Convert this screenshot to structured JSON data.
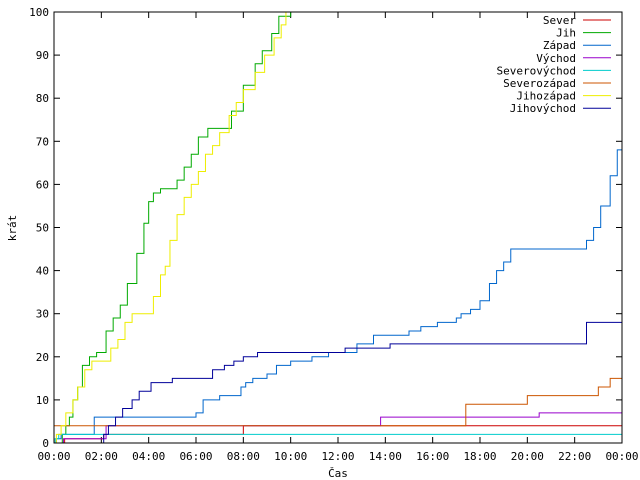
{
  "chart_data": {
    "type": "line",
    "xlabel": "Čas",
    "ylabel": "krát",
    "xlim": [
      0,
      24
    ],
    "ylim": [
      0,
      100
    ],
    "x_ticks": [
      "00:00",
      "02:00",
      "04:00",
      "06:00",
      "08:00",
      "10:00",
      "12:00",
      "14:00",
      "16:00",
      "18:00",
      "20:00",
      "22:00",
      "00:00"
    ],
    "y_ticks": [
      0,
      10,
      20,
      30,
      40,
      50,
      60,
      70,
      80,
      90,
      100
    ],
    "legend_position": "top-right",
    "line_style": "step",
    "series": [
      {
        "name": "Sever",
        "color": "#cc0000",
        "x": [
          0,
          0.4,
          0.45,
          2.0,
          2.1,
          7.95,
          8.0,
          24
        ],
        "y": [
          0,
          0,
          1,
          1,
          2,
          2,
          4,
          4
        ]
      },
      {
        "name": "Jih",
        "color": "#00aa00",
        "x": [
          0,
          0.35,
          0.5,
          0.65,
          0.8,
          1.0,
          1.2,
          1.5,
          1.8,
          2.2,
          2.5,
          2.8,
          3.1,
          3.5,
          3.8,
          4.0,
          4.2,
          4.5,
          5.2,
          5.5,
          5.8,
          6.1,
          6.5,
          7.0,
          7.5,
          8.0,
          8.5,
          8.8,
          9.2,
          9.5,
          10.0
        ],
        "y": [
          0,
          2,
          4,
          6,
          10,
          13,
          18,
          20,
          21,
          26,
          29,
          32,
          37,
          44,
          51,
          56,
          58,
          59,
          61,
          64,
          67,
          71,
          73,
          73,
          77,
          83,
          88,
          91,
          95,
          99,
          100
        ]
      },
      {
        "name": "Západ",
        "color": "#0066cc",
        "x": [
          0,
          0.1,
          0.3,
          1.5,
          1.7,
          5.9,
          6.0,
          6.3,
          7.0,
          7.6,
          7.9,
          8.1,
          8.4,
          9.0,
          9.4,
          10.0,
          10.9,
          11.6,
          12.2,
          12.8,
          13.5,
          14.3,
          15.0,
          15.5,
          16.2,
          17.0,
          17.2,
          17.6,
          18.0,
          18.4,
          18.7,
          19.0,
          19.3,
          22.1,
          22.5,
          22.8,
          23.1,
          23.5,
          23.8,
          24
        ],
        "y": [
          0,
          1,
          2,
          2,
          6,
          6,
          7,
          10,
          11,
          11,
          13,
          14,
          15,
          16,
          18,
          19,
          20,
          21,
          21,
          23,
          25,
          25,
          26,
          27,
          28,
          29,
          30,
          31,
          33,
          37,
          40,
          42,
          45,
          45,
          47,
          50,
          55,
          62,
          68,
          75
        ]
      },
      {
        "name": "Východ",
        "color": "#9900cc",
        "x": [
          0,
          0.2,
          0.4,
          2.1,
          2.2,
          13.6,
          13.8,
          20.4,
          20.5,
          24
        ],
        "y": [
          0,
          0,
          1,
          1,
          4,
          4,
          6,
          6,
          7,
          7
        ]
      },
      {
        "name": "Severovýchod",
        "color": "#00cccc",
        "x": [
          0,
          0.05,
          0.2,
          24
        ],
        "y": [
          0,
          1,
          2,
          2
        ]
      },
      {
        "name": "Severozápad",
        "color": "#cc5500",
        "x": [
          0,
          17.2,
          17.4,
          19.8,
          20.0,
          22.8,
          23.0,
          23.3,
          23.5,
          24
        ],
        "y": [
          4,
          4,
          9,
          9,
          11,
          11,
          13,
          13,
          15,
          15
        ]
      },
      {
        "name": "Jihozápad",
        "color": "#eeee00",
        "x": [
          0,
          0.1,
          0.3,
          0.5,
          0.8,
          1.0,
          1.3,
          1.6,
          2.0,
          2.4,
          2.7,
          3.0,
          3.3,
          3.8,
          4.2,
          4.5,
          4.7,
          4.9,
          5.2,
          5.5,
          5.8,
          6.1,
          6.4,
          6.7,
          7.0,
          7.4,
          7.7,
          8.0,
          8.5,
          8.9,
          9.3,
          9.6,
          9.8
        ],
        "y": [
          0,
          2,
          4,
          7,
          10,
          13,
          17,
          19,
          19,
          22,
          24,
          28,
          30,
          30,
          34,
          39,
          41,
          47,
          53,
          57,
          60,
          63,
          67,
          69,
          72,
          76,
          79,
          82,
          86,
          90,
          94,
          97,
          100
        ]
      },
      {
        "name": "Jihovýchod",
        "color": "#000099",
        "x": [
          0,
          2.0,
          2.1,
          2.3,
          2.6,
          2.9,
          3.3,
          3.6,
          4.1,
          4.5,
          5.0,
          5.6,
          6.2,
          6.7,
          7.2,
          7.6,
          8.0,
          8.6,
          9.2,
          11.0,
          12.0,
          12.3,
          12.8,
          13.5,
          14.2,
          22.3,
          22.5,
          24
        ],
        "y": [
          0,
          0,
          2,
          4,
          6,
          8,
          10,
          12,
          14,
          14,
          15,
          15,
          15,
          17,
          18,
          19,
          20,
          21,
          21,
          21,
          21,
          22,
          22,
          22,
          23,
          23,
          28,
          28
        ]
      }
    ]
  }
}
